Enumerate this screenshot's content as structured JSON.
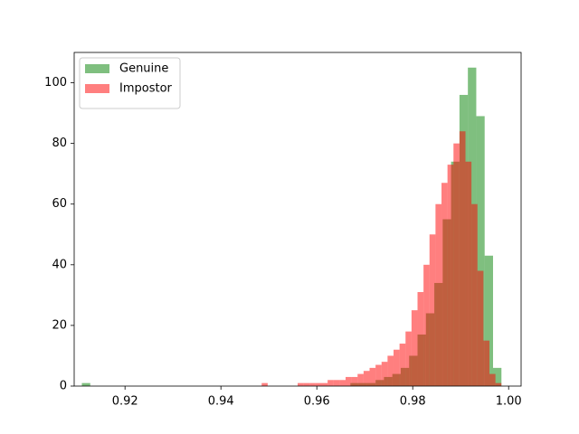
{
  "chart_data": {
    "type": "histogram",
    "xlim": [
      0.9094,
      1.0026
    ],
    "ylim": [
      0,
      110
    ],
    "xticks": [
      0.92,
      0.94,
      0.96,
      0.98,
      {
        "value": 1,
        "label": "1.00"
      }
    ],
    "yticks": [
      0,
      20,
      40,
      60,
      80,
      100
    ],
    "alpha": 0.5,
    "legend": "upper left",
    "series": [
      {
        "name": "Genuine",
        "color": "#008000",
        "bins": [
          0.911,
          0.91275,
          0.9145,
          0.91625,
          0.918,
          0.91975,
          0.9215,
          0.92325,
          0.925,
          0.92675,
          0.9285,
          0.93025,
          0.932,
          0.93375,
          0.9355,
          0.93725,
          0.939,
          0.94075,
          0.9425,
          0.94425,
          0.946,
          0.94775,
          0.9495,
          0.95125,
          0.953,
          0.95475,
          0.9565,
          0.95825,
          0.96,
          0.96175,
          0.9635,
          0.96525,
          0.967,
          0.96875,
          0.9705,
          0.97225,
          0.974,
          0.97575,
          0.9775,
          0.97925,
          0.981,
          0.98275,
          0.9845,
          0.98625,
          0.988,
          0.98975,
          0.9915,
          0.99325,
          0.995,
          0.99675,
          0.9985
        ],
        "values": [
          1,
          0,
          0,
          0,
          0,
          0,
          0,
          0,
          0,
          0,
          0,
          0,
          0,
          0,
          0,
          0,
          0,
          0,
          0,
          0,
          0,
          0,
          0,
          0,
          0,
          0,
          0,
          0,
          0,
          0,
          0,
          0,
          1,
          1,
          1,
          2,
          3,
          4,
          6,
          10,
          17,
          24,
          34,
          55,
          74,
          96,
          105,
          89,
          43,
          6
        ]
      },
      {
        "name": "Impostor",
        "color": "#ff0000",
        "bins": [
          0.9485,
          0.94975,
          0.951,
          0.95225,
          0.9535,
          0.95475,
          0.956,
          0.95725,
          0.9585,
          0.95975,
          0.961,
          0.96225,
          0.9635,
          0.96475,
          0.966,
          0.96725,
          0.9685,
          0.96975,
          0.971,
          0.97225,
          0.9735,
          0.97475,
          0.976,
          0.97725,
          0.9785,
          0.97975,
          0.981,
          0.98225,
          0.9835,
          0.98475,
          0.986,
          0.98725,
          0.9885,
          0.98975,
          0.991,
          0.99225,
          0.9935,
          0.99475,
          0.996,
          0.99725,
          0.9985
        ],
        "values": [
          1,
          0,
          0,
          0,
          0,
          0,
          1,
          1,
          1,
          1,
          1,
          2,
          2,
          2,
          3,
          3,
          4,
          5,
          6,
          7,
          8,
          10,
          12,
          14,
          18,
          25,
          31,
          40,
          50,
          60,
          67,
          73,
          80,
          84,
          74,
          60,
          38,
          15,
          4,
          1
        ]
      }
    ]
  }
}
